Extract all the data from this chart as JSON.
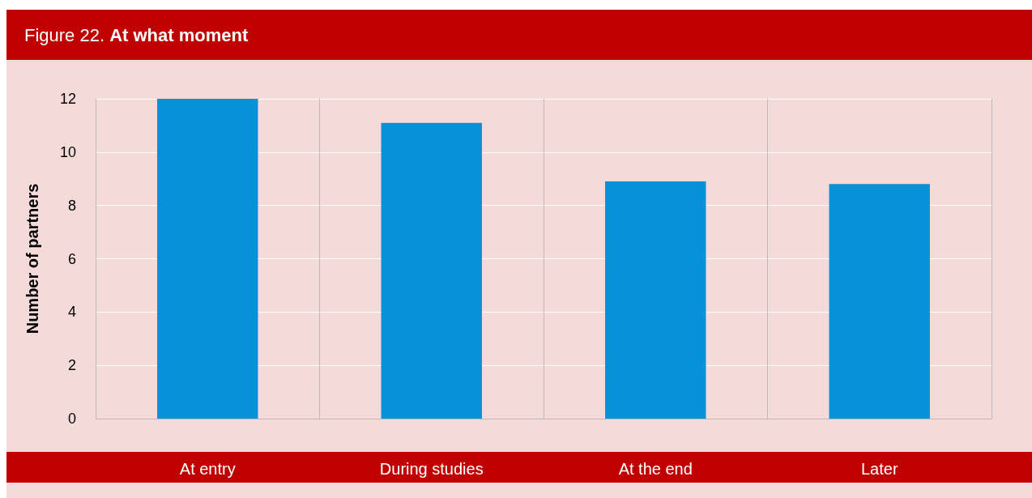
{
  "chart_data": {
    "type": "bar",
    "title": "Figure 22. At what moment",
    "ylabel": "Number of partners",
    "categories": [
      "At entry",
      "During studies",
      "At the end",
      "Later"
    ],
    "values": [
      12,
      11.1,
      8.9,
      8.8
    ],
    "color": "#0891d8",
    "ylim": [
      0,
      12
    ],
    "yticks": [
      0,
      2,
      4,
      6,
      8,
      10,
      12
    ],
    "grid": true
  }
}
